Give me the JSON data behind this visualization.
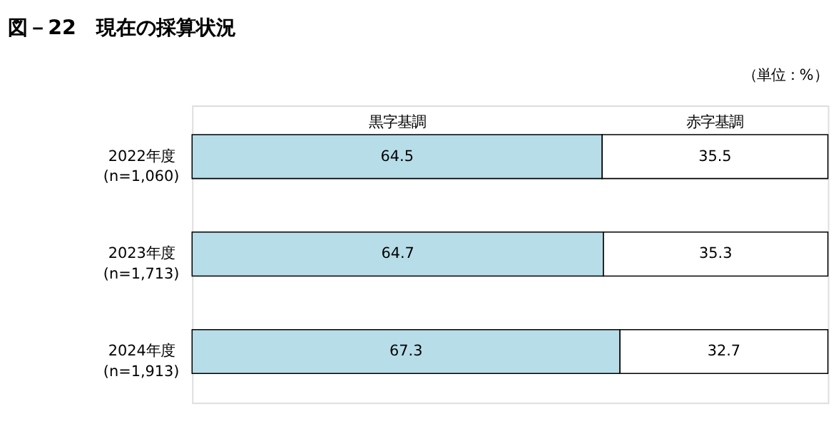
{
  "chart_data": {
    "type": "bar",
    "orientation": "horizontal",
    "stacked": true,
    "title": "図－22　現在の採算状況",
    "annotations": [
      "（単位：%）"
    ],
    "categories": [
      "2022年度\n(n=1,060)",
      "2023年度\n(n=1,713)",
      "2024年度\n(n=1,913)"
    ],
    "series": [
      {
        "name": "黒字基調",
        "color": "#b7dde8",
        "values": [
          64.5,
          64.7,
          67.3
        ]
      },
      {
        "name": "赤字基調",
        "color": "#ffffff",
        "values": [
          35.5,
          35.3,
          32.7
        ]
      }
    ],
    "xlim": [
      0,
      100
    ],
    "data_labels": true,
    "legend": "top",
    "tick_labels": "y"
  }
}
